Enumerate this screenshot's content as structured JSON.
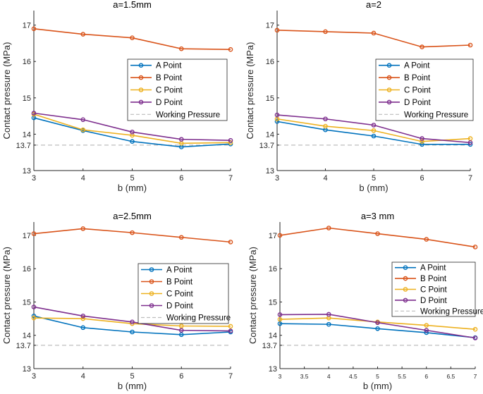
{
  "colors": {
    "A Point": "#0072BD",
    "B Point": "#D95319",
    "C Point": "#EDB120",
    "D Point": "#7E2F8E",
    "Working Pressure": "#bdbdbd",
    "axis": "#262626"
  },
  "chart_data": [
    {
      "type": "line",
      "title": "a=1.5mm",
      "xlabel": "b (mm)",
      "ylabel": "Contact pressure (MPa)",
      "xlim": [
        3,
        7
      ],
      "ylim": [
        13,
        17.4
      ],
      "xticks": [
        3,
        4,
        5,
        6,
        7
      ],
      "xtick_labels": [
        "3",
        "4",
        "5",
        "6",
        "7"
      ],
      "yticks": [
        13,
        13.7,
        14,
        15,
        16,
        17
      ],
      "ytick_labels": [
        "13",
        "13.7",
        "14",
        "15",
        "16",
        "17"
      ],
      "legend": [
        "A Point",
        "B Point",
        "C Point",
        "D Point",
        "Working Pressure"
      ],
      "legend_position": "center-right",
      "x": [
        3,
        4,
        5,
        6,
        7
      ],
      "series": [
        {
          "name": "A Point",
          "values": [
            14.45,
            14.1,
            13.8,
            13.65,
            13.73
          ]
        },
        {
          "name": "B Point",
          "values": [
            16.9,
            16.75,
            16.65,
            16.35,
            16.33
          ]
        },
        {
          "name": "C Point",
          "values": [
            14.55,
            14.12,
            13.97,
            13.75,
            13.77
          ]
        },
        {
          "name": "D Point",
          "values": [
            14.58,
            14.4,
            14.06,
            13.86,
            13.83
          ]
        }
      ],
      "reference_line": {
        "name": "Working Pressure",
        "value": 13.7
      }
    },
    {
      "type": "line",
      "title": "a=2",
      "xlabel": "b (mm)",
      "ylabel": "Contact pressure (MPa)",
      "xlim": [
        3,
        7
      ],
      "ylim": [
        13,
        17.4
      ],
      "xticks": [
        3,
        4,
        5,
        6,
        7
      ],
      "xtick_labels": [
        "3",
        "4",
        "5",
        "6",
        "7"
      ],
      "yticks": [
        13,
        13.7,
        14,
        15,
        16,
        17
      ],
      "ytick_labels": [
        "13",
        "13.7",
        "14",
        "15",
        "16",
        "17"
      ],
      "legend": [
        "A Point",
        "B Point",
        "C Point",
        "D Point",
        "Working Pressure"
      ],
      "legend_position": "center-right",
      "x": [
        3,
        4,
        5,
        6,
        7
      ],
      "series": [
        {
          "name": "A Point",
          "values": [
            14.35,
            14.12,
            13.95,
            13.72,
            13.72
          ]
        },
        {
          "name": "B Point",
          "values": [
            16.86,
            16.82,
            16.78,
            16.4,
            16.45
          ]
        },
        {
          "name": "C Point",
          "values": [
            14.42,
            14.22,
            14.1,
            13.8,
            13.88
          ]
        },
        {
          "name": "D Point",
          "values": [
            14.53,
            14.42,
            14.25,
            13.88,
            13.77
          ]
        }
      ],
      "reference_line": {
        "name": "Working Pressure",
        "value": 13.7
      }
    },
    {
      "type": "line",
      "title": "a=2.5mm",
      "xlabel": "b (mm)",
      "ylabel": "Contact pressure (MPa)",
      "xlim": [
        3,
        7
      ],
      "ylim": [
        13,
        17.4
      ],
      "xticks": [
        3,
        4,
        5,
        6,
        7
      ],
      "xtick_labels": [
        "3",
        "4",
        "5",
        "6",
        "7"
      ],
      "yticks": [
        13,
        13.7,
        14,
        15,
        16,
        17
      ],
      "ytick_labels": [
        "13",
        "13.7",
        "14",
        "15",
        "16",
        "17"
      ],
      "legend": [
        "A Point",
        "B Point",
        "C Point",
        "D Point",
        "Working Pressure"
      ],
      "legend_position": "center-right",
      "x": [
        3,
        4,
        5,
        6,
        7
      ],
      "series": [
        {
          "name": "A Point",
          "values": [
            14.58,
            14.23,
            14.1,
            14.02,
            14.1
          ]
        },
        {
          "name": "B Point",
          "values": [
            17.05,
            17.2,
            17.08,
            16.94,
            16.8
          ]
        },
        {
          "name": "C Point",
          "values": [
            14.52,
            14.5,
            14.35,
            14.28,
            14.27
          ]
        },
        {
          "name": "D Point",
          "values": [
            14.85,
            14.58,
            14.4,
            14.15,
            14.13
          ]
        }
      ],
      "reference_line": {
        "name": "Working Pressure",
        "value": 13.7
      }
    },
    {
      "type": "line",
      "title": "a=3 mm",
      "xlabel": "b (mm)",
      "ylabel": "Contact pressure (MPa)",
      "xlim": [
        3,
        7
      ],
      "ylim": [
        13,
        17.4
      ],
      "xticks": [
        3,
        3.5,
        4,
        4.5,
        5,
        5.5,
        6,
        6.5,
        7
      ],
      "xtick_labels": [
        "3",
        "3.5",
        "4",
        "4.5",
        "5",
        "5.5",
        "6",
        "6.5",
        "7"
      ],
      "yticks": [
        13,
        13.7,
        14,
        15,
        16,
        17
      ],
      "ytick_labels": [
        "13",
        "13.7",
        "14",
        "15",
        "16",
        "17"
      ],
      "legend": [
        "A Point",
        "B Point",
        "C Point",
        "D Point",
        "Working Pressure"
      ],
      "legend_position": "center-right",
      "x": [
        3,
        4,
        5,
        6,
        7
      ],
      "series": [
        {
          "name": "A Point",
          "values": [
            14.35,
            14.33,
            14.2,
            14.08,
            13.93
          ]
        },
        {
          "name": "B Point",
          "values": [
            17.0,
            17.22,
            17.05,
            16.88,
            16.65
          ]
        },
        {
          "name": "C Point",
          "values": [
            14.48,
            14.52,
            14.4,
            14.3,
            14.18
          ]
        },
        {
          "name": "D Point",
          "values": [
            14.62,
            14.63,
            14.38,
            14.15,
            13.92
          ]
        }
      ],
      "reference_line": {
        "name": "Working Pressure",
        "value": 13.7
      }
    }
  ]
}
